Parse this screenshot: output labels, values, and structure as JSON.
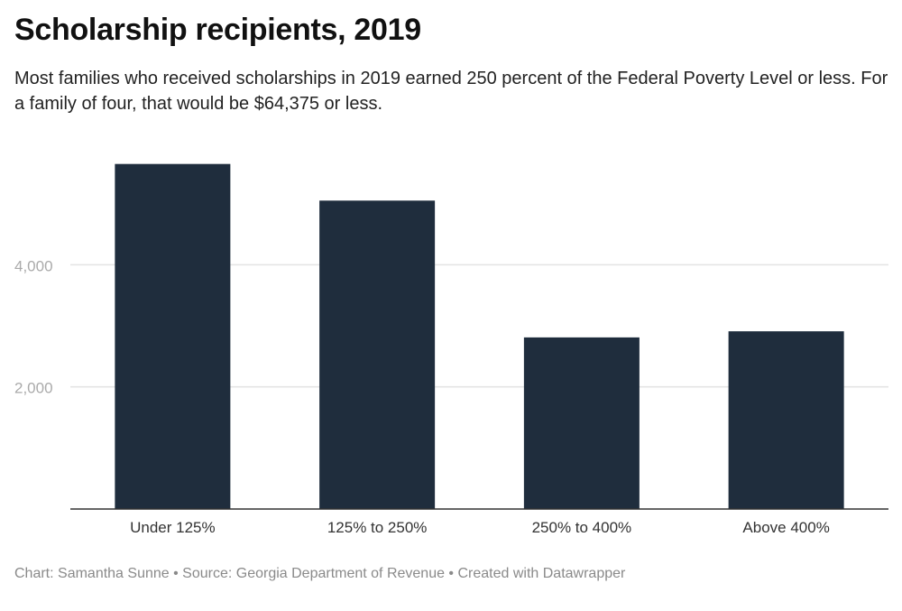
{
  "title": "Scholarship recipients, 2019",
  "subtitle": "Most families who received scholarships in 2019 earned 250 percent of the Federal Poverty Level or less. For a family of four, that would be $64,375 or less.",
  "footer": {
    "text": "Chart: Samantha Sunne • Source: Georgia Department of Revenue • Created with Datawrapper"
  },
  "colors": {
    "bar": "#1f2d3d",
    "grid": "#e3e3e3",
    "axis": "#333333",
    "tick_label": "#aaaaaa",
    "category_label": "#333333"
  },
  "chart_data": {
    "type": "bar",
    "title": "Scholarship recipients, 2019",
    "xlabel": "",
    "ylabel": "",
    "categories": [
      "Under 125%",
      "125% to 250%",
      "250% to 400%",
      "Above 400%"
    ],
    "values": [
      5650,
      5050,
      2810,
      2910
    ],
    "ylim": [
      0,
      6000
    ],
    "yticks": [
      2000,
      4000
    ],
    "ytick_labels": [
      "2,000",
      "4,000"
    ],
    "grid": true,
    "legend": "none"
  }
}
